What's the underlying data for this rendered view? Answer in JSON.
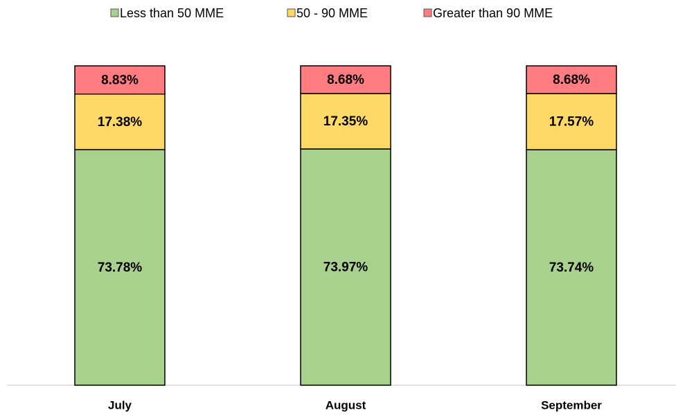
{
  "chart_data": {
    "type": "stacked_bar",
    "categories": [
      "July",
      "August",
      "September"
    ],
    "series": [
      {
        "name": "Less than 50 MME",
        "color": "#a9d18e",
        "values": [
          73.78,
          73.97,
          73.74
        ],
        "value_labels": [
          "73.78%",
          "73.97%",
          "73.74%"
        ]
      },
      {
        "name": "50 - 90 MME",
        "color": "#ffd966",
        "values": [
          17.38,
          17.35,
          17.57
        ],
        "value_labels": [
          "17.38%",
          "17.35%",
          "17.57%"
        ]
      },
      {
        "name": "Greater than 90 MME",
        "color": "#ff7c80",
        "values": [
          8.83,
          8.68,
          8.68
        ],
        "value_labels": [
          "8.83%",
          "8.68%",
          "8.68%"
        ]
      }
    ],
    "legend": "top"
  }
}
